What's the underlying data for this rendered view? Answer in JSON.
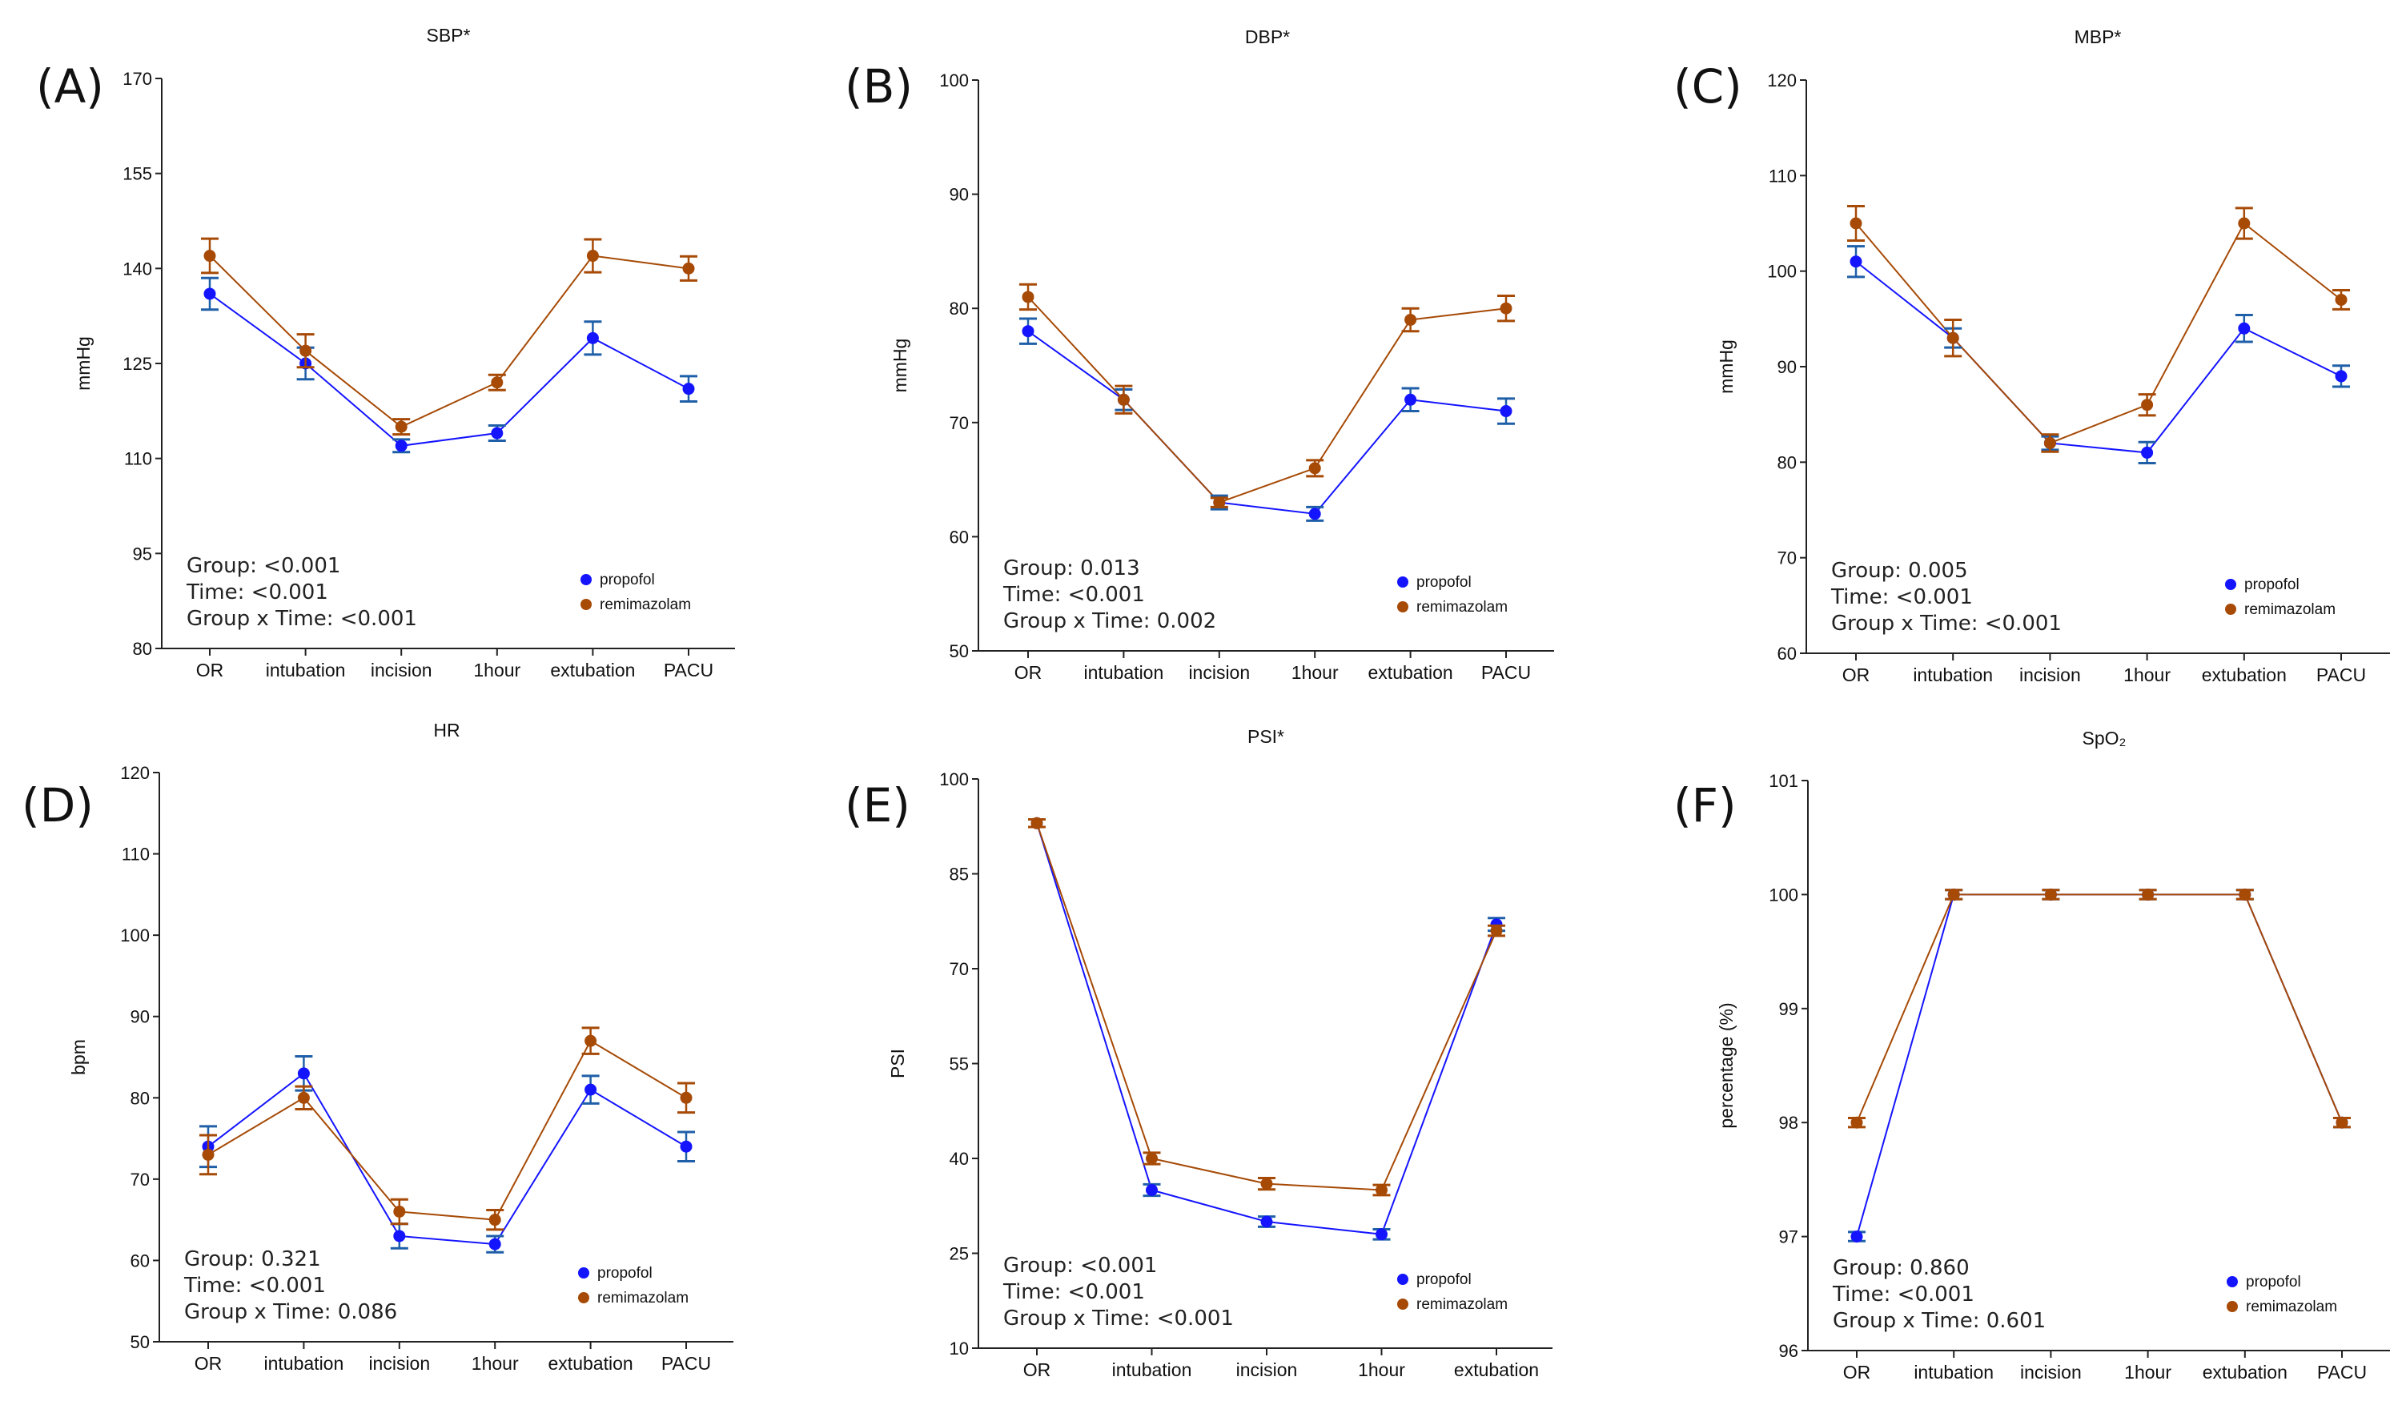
{
  "colors": {
    "propofol": "#1414ff",
    "propofol_err": "#1f5fa8",
    "remimazolam": "#a64a06",
    "axis": "#222222"
  },
  "legend": [
    "propofol",
    "remimazolam"
  ],
  "chart_data": [
    {
      "type": "line",
      "panel": "(A)",
      "title": "SBP*",
      "ylabel": "mmHg",
      "ylim": [
        80,
        170
      ],
      "yticks": [
        80,
        95,
        110,
        125,
        140,
        155,
        170
      ],
      "categories": [
        "OR",
        "intubation",
        "incision",
        "1hour",
        "extubation",
        "PACU"
      ],
      "stats": [
        "Group:  <0.001",
        "Time:  <0.001",
        "Group x Time:  <0.001"
      ],
      "series": [
        {
          "name": "propofol",
          "values": [
            136,
            125,
            112,
            114,
            129,
            121
          ],
          "errors": [
            2.5,
            2.5,
            1,
            1.2,
            2.6,
            2
          ]
        },
        {
          "name": "remimazolam",
          "values": [
            142,
            127,
            115,
            122,
            142,
            140
          ],
          "errors": [
            2.7,
            2.6,
            1.2,
            1.2,
            2.6,
            1.9
          ]
        }
      ]
    },
    {
      "type": "line",
      "panel": "(B)",
      "title": "DBP*",
      "ylabel": "mmHg",
      "ylim": [
        50,
        100
      ],
      "yticks": [
        50,
        60,
        70,
        80,
        90,
        100
      ],
      "categories": [
        "OR",
        "intubation",
        "incision",
        "1hour",
        "extubation",
        "PACU"
      ],
      "stats": [
        "Group: 0.013",
        "Time:  <0.001",
        "Group x Time: 0.002"
      ],
      "series": [
        {
          "name": "propofol",
          "values": [
            78,
            72,
            63,
            62,
            72,
            71
          ],
          "errors": [
            1.1,
            0.9,
            0.6,
            0.6,
            1,
            1.1
          ]
        },
        {
          "name": "remimazolam",
          "values": [
            81,
            72,
            63,
            66,
            79,
            80
          ],
          "errors": [
            1.1,
            1.2,
            0.4,
            0.7,
            1,
            1.1
          ]
        }
      ]
    },
    {
      "type": "line",
      "panel": "(C)",
      "title": "MBP*",
      "ylabel": "mmHg",
      "ylim": [
        60,
        120
      ],
      "yticks": [
        60,
        70,
        80,
        90,
        100,
        110,
        120
      ],
      "categories": [
        "OR",
        "intubation",
        "incision",
        "1hour",
        "extubation",
        "PACU"
      ],
      "stats": [
        "Group: 0.005",
        "Time:  <0.001",
        "Group x Time:  <0.001"
      ],
      "series": [
        {
          "name": "propofol",
          "values": [
            101,
            93,
            82,
            81,
            94,
            89
          ],
          "errors": [
            1.6,
            1,
            0.7,
            1.1,
            1.4,
            1.1
          ]
        },
        {
          "name": "remimazolam",
          "values": [
            105,
            93,
            82,
            86,
            105,
            97
          ],
          "errors": [
            1.8,
            1.9,
            0.9,
            1.1,
            1.6,
            1
          ]
        }
      ]
    },
    {
      "type": "line",
      "panel": "(D)",
      "title": "HR",
      "ylabel": "bpm",
      "ylim": [
        50,
        120
      ],
      "yticks": [
        50,
        60,
        70,
        80,
        90,
        100,
        110,
        120
      ],
      "categories": [
        "OR",
        "intubation",
        "incision",
        "1hour",
        "extubation",
        "PACU"
      ],
      "stats": [
        "Group: 0.321",
        "Time:  <0.001",
        "Group x Time: 0.086"
      ],
      "series": [
        {
          "name": "propofol",
          "values": [
            74,
            83,
            63,
            62,
            81,
            74
          ],
          "errors": [
            2.5,
            2.1,
            1.5,
            1,
            1.7,
            1.8
          ]
        },
        {
          "name": "remimazolam",
          "values": [
            73,
            80,
            66,
            65,
            87,
            80
          ],
          "errors": [
            2.4,
            1.4,
            1.5,
            1.2,
            1.6,
            1.8
          ]
        }
      ]
    },
    {
      "type": "line",
      "panel": "(E)",
      "title": "PSI*",
      "ylabel": "PSI",
      "ylim": [
        10,
        100
      ],
      "yticks": [
        10,
        25,
        40,
        55,
        70,
        85,
        100
      ],
      "categories": [
        "OR",
        "intubation",
        "incision",
        "1hour",
        "extubation"
      ],
      "stats": [
        "Group:  <0.001",
        "Time:  <0.001",
        "Group x Time:  <0.001"
      ],
      "series": [
        {
          "name": "propofol",
          "values": [
            93,
            35,
            30,
            28,
            77
          ],
          "errors": [
            0.6,
            0.9,
            0.8,
            0.8,
            1
          ]
        },
        {
          "name": "remimazolam",
          "values": [
            93,
            40,
            36,
            35,
            76
          ],
          "errors": [
            0.6,
            0.9,
            0.9,
            0.8,
            0.8
          ]
        }
      ]
    },
    {
      "type": "line",
      "panel": "(F)",
      "title": "SpO₂",
      "ylabel": "percentage (%)",
      "ylim": [
        96,
        101
      ],
      "yticks": [
        96,
        97,
        98,
        99,
        100,
        101
      ],
      "categories": [
        "OR",
        "intubation",
        "incision",
        "1hour",
        "extubation",
        "PACU"
      ],
      "stats": [
        "Group: 0.860",
        "Time:  <0.001",
        "Group x Time: 0.601"
      ],
      "series": [
        {
          "name": "propofol",
          "values": [
            97,
            100,
            100,
            100,
            100,
            98
          ],
          "errors": [
            0.04,
            0.04,
            0.04,
            0.04,
            0.04,
            0.04
          ]
        },
        {
          "name": "remimazolam",
          "values": [
            98,
            100,
            100,
            100,
            100,
            98
          ],
          "errors": [
            0.04,
            0.04,
            0.04,
            0.04,
            0.04,
            0.04
          ]
        }
      ]
    }
  ]
}
